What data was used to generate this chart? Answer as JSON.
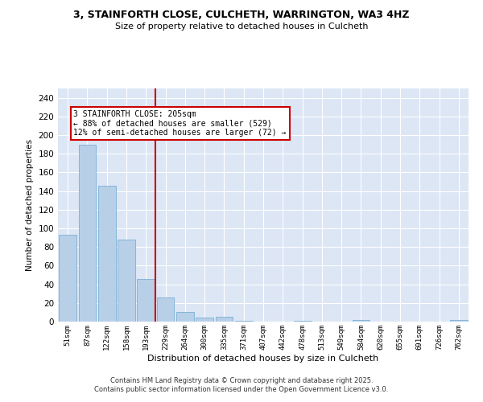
{
  "title1": "3, STAINFORTH CLOSE, CULCHETH, WARRINGTON, WA3 4HZ",
  "title2": "Size of property relative to detached houses in Culcheth",
  "xlabel": "Distribution of detached houses by size in Culcheth",
  "ylabel": "Number of detached properties",
  "categories": [
    "51sqm",
    "87sqm",
    "122sqm",
    "158sqm",
    "193sqm",
    "229sqm",
    "264sqm",
    "300sqm",
    "335sqm",
    "371sqm",
    "407sqm",
    "442sqm",
    "478sqm",
    "513sqm",
    "549sqm",
    "584sqm",
    "620sqm",
    "655sqm",
    "691sqm",
    "726sqm",
    "762sqm"
  ],
  "values": [
    93,
    190,
    146,
    88,
    46,
    26,
    10,
    4,
    5,
    1,
    0,
    0,
    1,
    0,
    0,
    2,
    0,
    0,
    0,
    0,
    2
  ],
  "bar_color": "#b8cfe8",
  "bar_edge_color": "#7aafd4",
  "background_color": "#dce6f5",
  "grid_color": "#ffffff",
  "vline_x": 4.5,
  "vline_color": "#cc0000",
  "annotation_text": "3 STAINFORTH CLOSE: 205sqm\n← 88% of detached houses are smaller (529)\n12% of semi-detached houses are larger (72) →",
  "annotation_box_color": "#cc0000",
  "ylim": [
    0,
    250
  ],
  "yticks": [
    0,
    20,
    40,
    60,
    80,
    100,
    120,
    140,
    160,
    180,
    200,
    220,
    240
  ],
  "footer1": "Contains HM Land Registry data © Crown copyright and database right 2025.",
  "footer2": "Contains public sector information licensed under the Open Government Licence v3.0."
}
